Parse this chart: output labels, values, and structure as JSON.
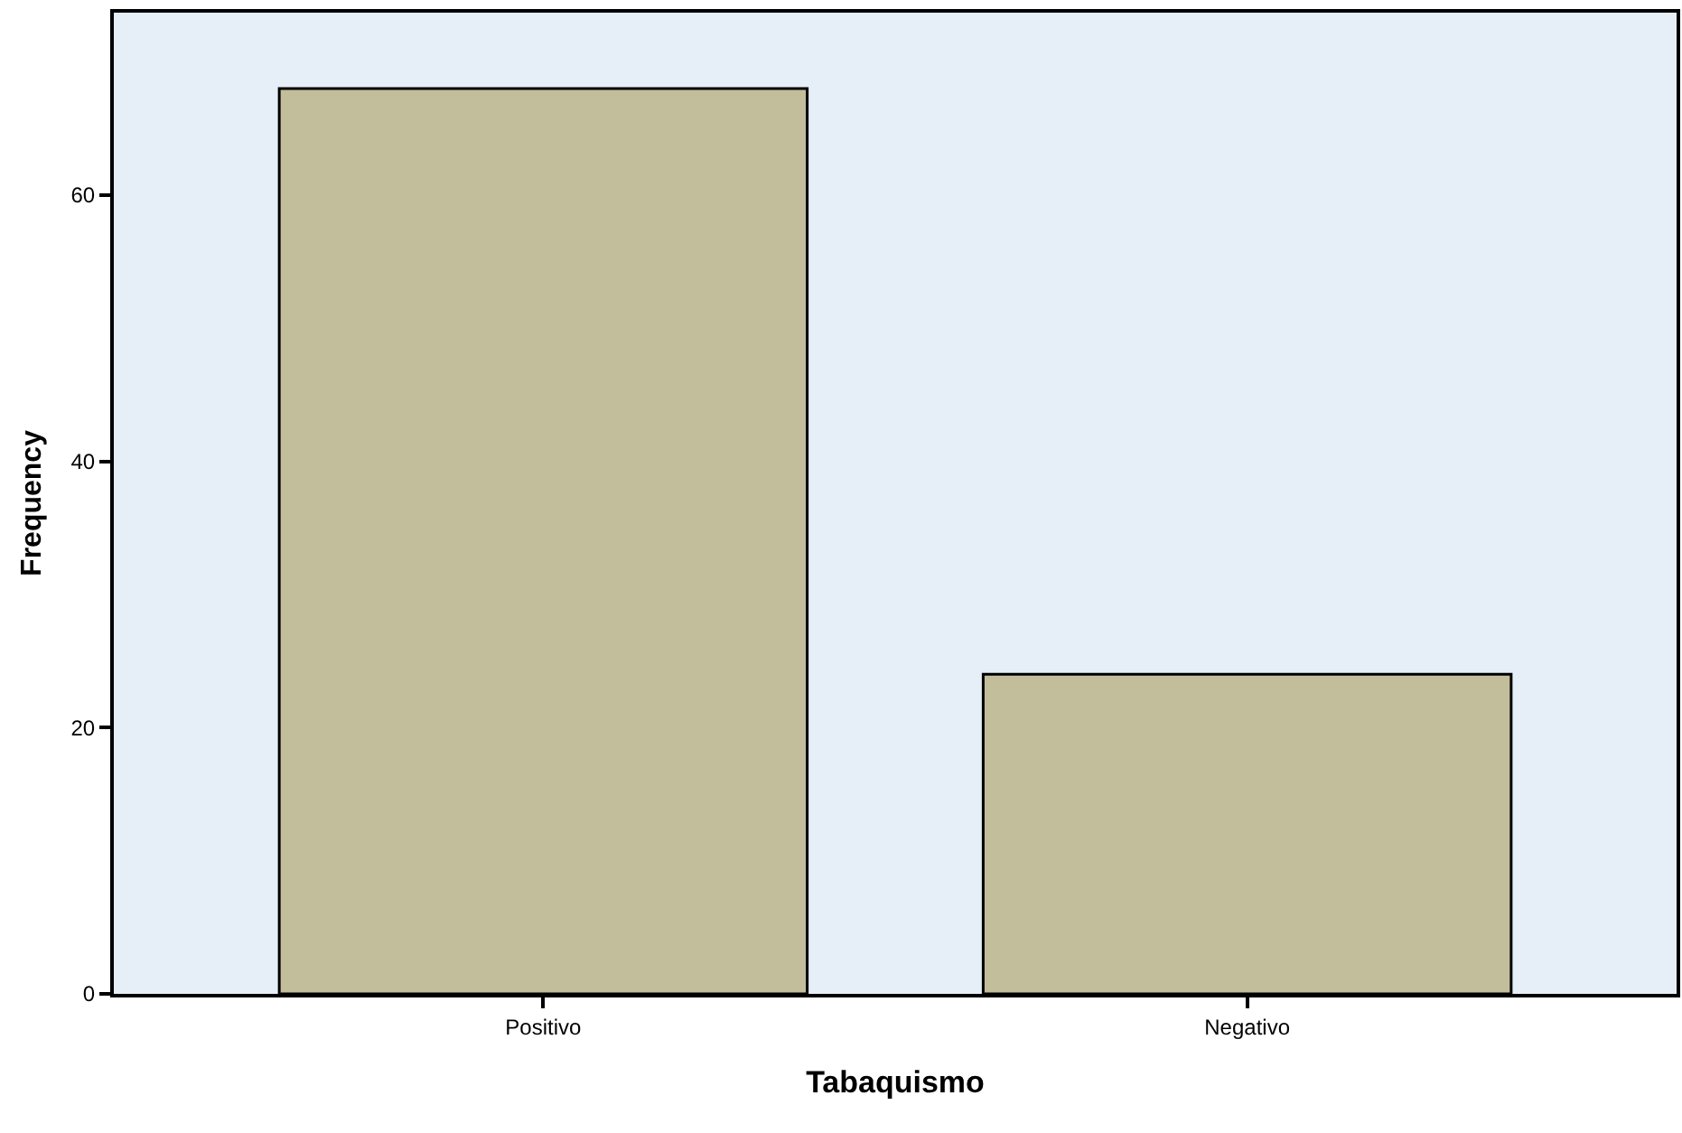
{
  "chart_data": {
    "type": "bar",
    "xlabel": "Tabaquismo",
    "ylabel": "Frequency",
    "categories": [
      "Positivo",
      "Negativo"
    ],
    "values": [
      68,
      24
    ],
    "color": "#c2bd9a",
    "ylim": [
      0,
      73.7
    ],
    "yticks": [
      0,
      20,
      40,
      60
    ]
  }
}
